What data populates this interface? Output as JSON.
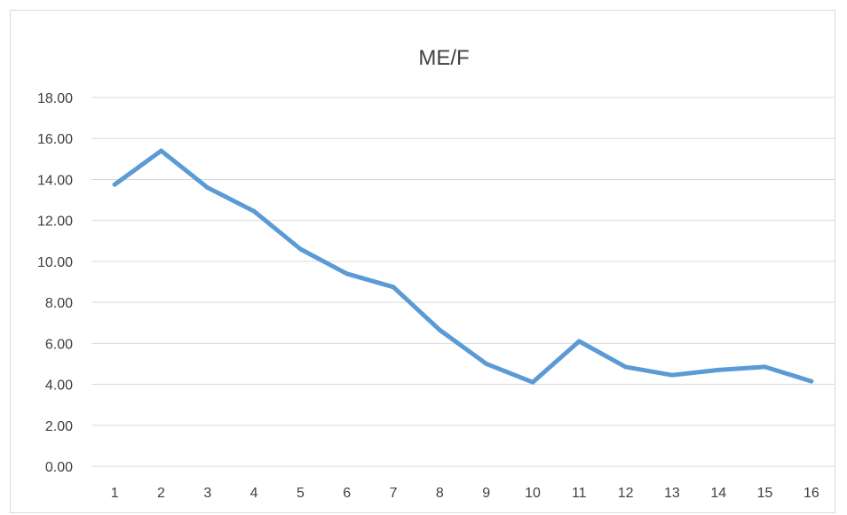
{
  "chart_data": {
    "type": "line",
    "title": "ME/F",
    "xlabel": "",
    "ylabel": "",
    "x": [
      "1",
      "2",
      "3",
      "4",
      "5",
      "6",
      "7",
      "8",
      "9",
      "10",
      "11",
      "12",
      "13",
      "14",
      "15",
      "16"
    ],
    "series": [
      {
        "values": [
          13.75,
          15.4,
          13.6,
          12.45,
          10.6,
          9.4,
          8.75,
          6.65,
          5.0,
          4.1,
          6.1,
          4.85,
          4.45,
          4.7,
          4.85,
          4.15
        ]
      }
    ],
    "ylim": [
      0,
      18
    ],
    "ytick_step": 2,
    "ytick_labels": [
      "0.00",
      "2.00",
      "4.00",
      "6.00",
      "8.00",
      "10.00",
      "12.00",
      "14.00",
      "16.00",
      "18.00"
    ],
    "grid": true,
    "legend": "none",
    "colors": {
      "series": "#5b9bd5",
      "grid": "#d9d9d9",
      "text": "#404040"
    }
  }
}
